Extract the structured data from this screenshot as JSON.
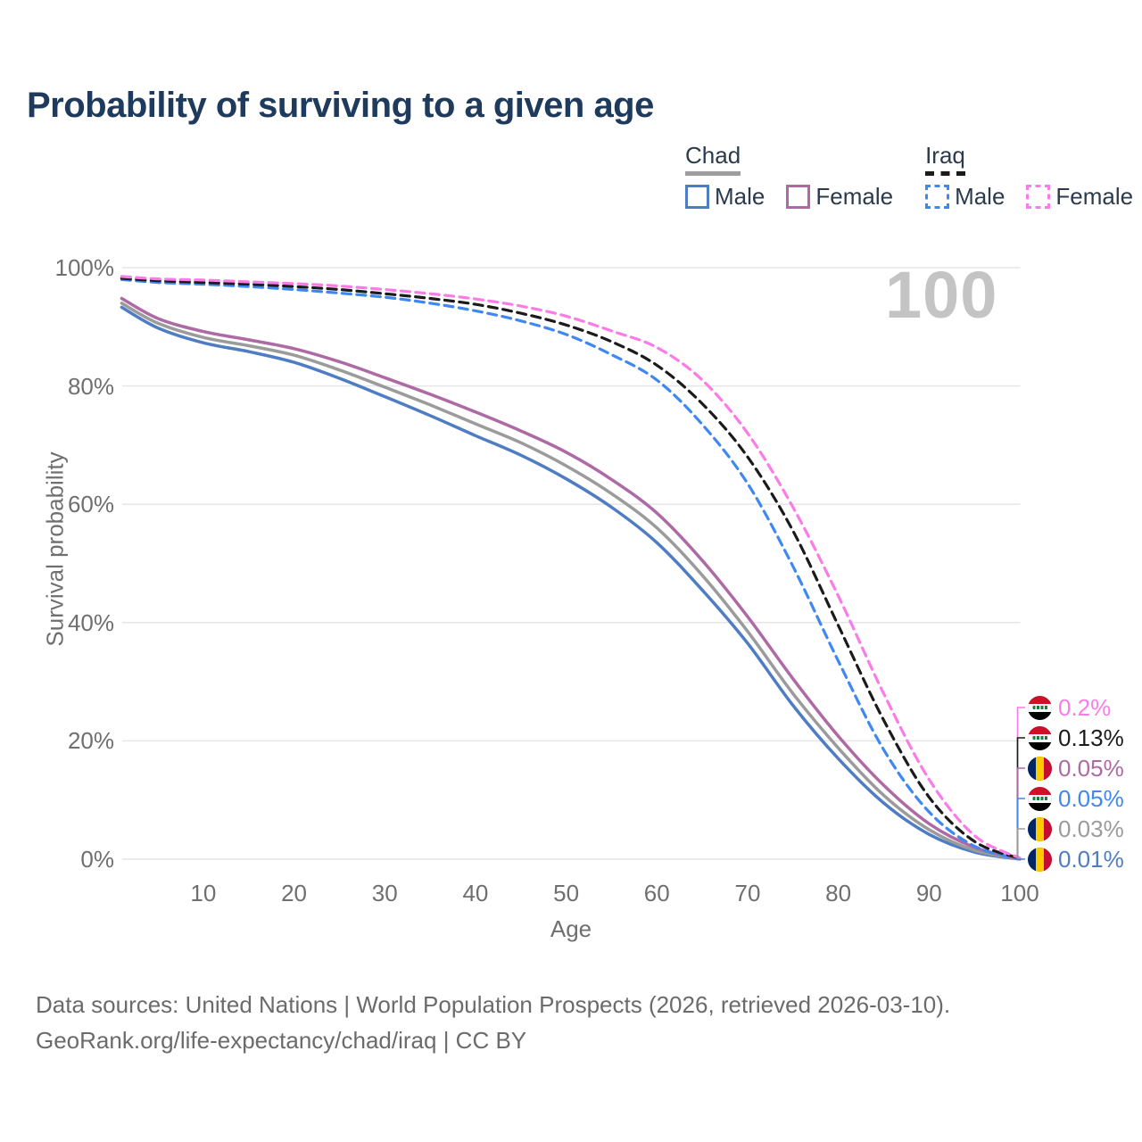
{
  "title": "Probability of surviving to a given age",
  "watermark": "100",
  "legend": {
    "groups": [
      {
        "name": "Chad",
        "underline": "solid",
        "items": [
          {
            "label": "Male",
            "color": "#4f7dc4",
            "dashed": false
          },
          {
            "label": "Female",
            "color": "#ad6aa4",
            "dashed": false
          }
        ]
      },
      {
        "name": "Iraq",
        "underline": "dashed",
        "items": [
          {
            "label": "Male",
            "color": "#3f88f2",
            "dashed": true
          },
          {
            "label": "Female",
            "color": "#fb7ce8",
            "dashed": true
          }
        ]
      }
    ]
  },
  "axes": {
    "x_label": "Age",
    "y_label": "Survival probability",
    "x_ticks": [
      10,
      20,
      30,
      40,
      50,
      60,
      70,
      80,
      90,
      100
    ],
    "y_ticks": [
      {
        "pct": 0,
        "label": "0%"
      },
      {
        "pct": 20,
        "label": "20%"
      },
      {
        "pct": 40,
        "label": "40%"
      },
      {
        "pct": 60,
        "label": "60%"
      },
      {
        "pct": 80,
        "label": "80%"
      },
      {
        "pct": 100,
        "label": "100%"
      }
    ]
  },
  "chart_data": {
    "type": "line",
    "title": "Probability of surviving to a given age",
    "xlabel": "Age",
    "ylabel": "Survival probability",
    "xlim": [
      0,
      100
    ],
    "ylim_pct": [
      0,
      100
    ],
    "grid": "horizontal",
    "legend_position": "top-right",
    "ages": [
      1,
      5,
      10,
      15,
      20,
      25,
      30,
      35,
      40,
      45,
      50,
      55,
      60,
      65,
      70,
      75,
      80,
      85,
      90,
      95,
      100
    ],
    "series": [
      {
        "id": "chad-male",
        "name": "Chad Male",
        "country": "Chad",
        "sex": "Male",
        "color": "#4f7dc4",
        "dashed": false,
        "values": [
          93.3,
          89.8,
          87.3,
          85.8,
          84.0,
          81.3,
          78.2,
          75.0,
          71.6,
          68.3,
          64.3,
          59.5,
          53.5,
          45.5,
          36.5,
          26.0,
          17.0,
          9.5,
          4.2,
          1.2,
          0.01
        ]
      },
      {
        "id": "chad-both",
        "name": "Chad Both sexes",
        "country": "Chad",
        "sex": "Both",
        "color": "#9b9b9b",
        "dashed": false,
        "values": [
          94.0,
          90.6,
          88.2,
          86.8,
          85.2,
          82.7,
          79.8,
          76.8,
          73.6,
          70.4,
          66.5,
          61.8,
          56.0,
          48.0,
          38.5,
          28.0,
          18.8,
          10.8,
          5.0,
          1.5,
          0.03
        ]
      },
      {
        "id": "chad-female",
        "name": "Chad Female",
        "country": "Chad",
        "sex": "Female",
        "color": "#ad6aa4",
        "dashed": false,
        "values": [
          94.8,
          91.4,
          89.2,
          87.8,
          86.3,
          84.1,
          81.4,
          78.6,
          75.6,
          72.4,
          68.8,
          64.2,
          58.5,
          50.5,
          41.0,
          30.5,
          20.8,
          12.5,
          6.0,
          2.0,
          0.05
        ]
      },
      {
        "id": "iraq-male",
        "name": "Iraq Male",
        "country": "Iraq",
        "sex": "Male",
        "color": "#3f88f2",
        "dashed": true,
        "values": [
          98.0,
          97.5,
          97.2,
          96.8,
          96.3,
          95.7,
          95.0,
          94.0,
          92.7,
          91.0,
          88.7,
          85.3,
          81.0,
          73.5,
          63.5,
          49.5,
          33.5,
          18.5,
          8.0,
          2.2,
          0.05
        ]
      },
      {
        "id": "iraq-both",
        "name": "Iraq Both sexes",
        "country": "Iraq",
        "sex": "Both",
        "color": "#1b1b1b",
        "dashed": true,
        "values": [
          98.2,
          97.8,
          97.5,
          97.2,
          96.8,
          96.3,
          95.6,
          94.8,
          93.8,
          92.3,
          90.3,
          87.5,
          83.5,
          77.0,
          68.0,
          55.5,
          39.5,
          23.5,
          10.5,
          3.0,
          0.13
        ]
      },
      {
        "id": "iraq-female",
        "name": "Iraq Female",
        "country": "Iraq",
        "sex": "Female",
        "color": "#fb7ce8",
        "dashed": true,
        "values": [
          98.5,
          98.1,
          97.9,
          97.6,
          97.3,
          96.9,
          96.3,
          95.6,
          94.7,
          93.5,
          91.8,
          89.3,
          86.5,
          81.0,
          72.0,
          59.5,
          44.5,
          28.0,
          13.5,
          4.0,
          0.2
        ]
      }
    ]
  },
  "end_labels": [
    {
      "value": "0.2%",
      "color": "#fb7ce8",
      "flag": "iraq",
      "series": "Iraq Female",
      "end_pct": 0.2
    },
    {
      "value": "0.13%",
      "color": "#1b1b1b",
      "flag": "iraq",
      "series": "Iraq Both sexes",
      "end_pct": 0.13
    },
    {
      "value": "0.05%",
      "color": "#ad6aa4",
      "flag": "chad",
      "series": "Chad Female",
      "end_pct": 0.05
    },
    {
      "value": "0.05%",
      "color": "#3f88f2",
      "flag": "iraq",
      "series": "Iraq Male",
      "end_pct": 0.05
    },
    {
      "value": "0.03%",
      "color": "#9b9b9b",
      "flag": "chad",
      "series": "Chad Both sexes",
      "end_pct": 0.03
    },
    {
      "value": "0.01%",
      "color": "#4f7dc4",
      "flag": "chad",
      "series": "Chad Male",
      "end_pct": 0.01
    }
  ],
  "footer": {
    "line1": "Data sources: United Nations | World Population Prospects (2026, retrieved 2026-03-10).",
    "line2": "GeoRank.org/life-expectancy/chad/iraq | CC BY"
  }
}
